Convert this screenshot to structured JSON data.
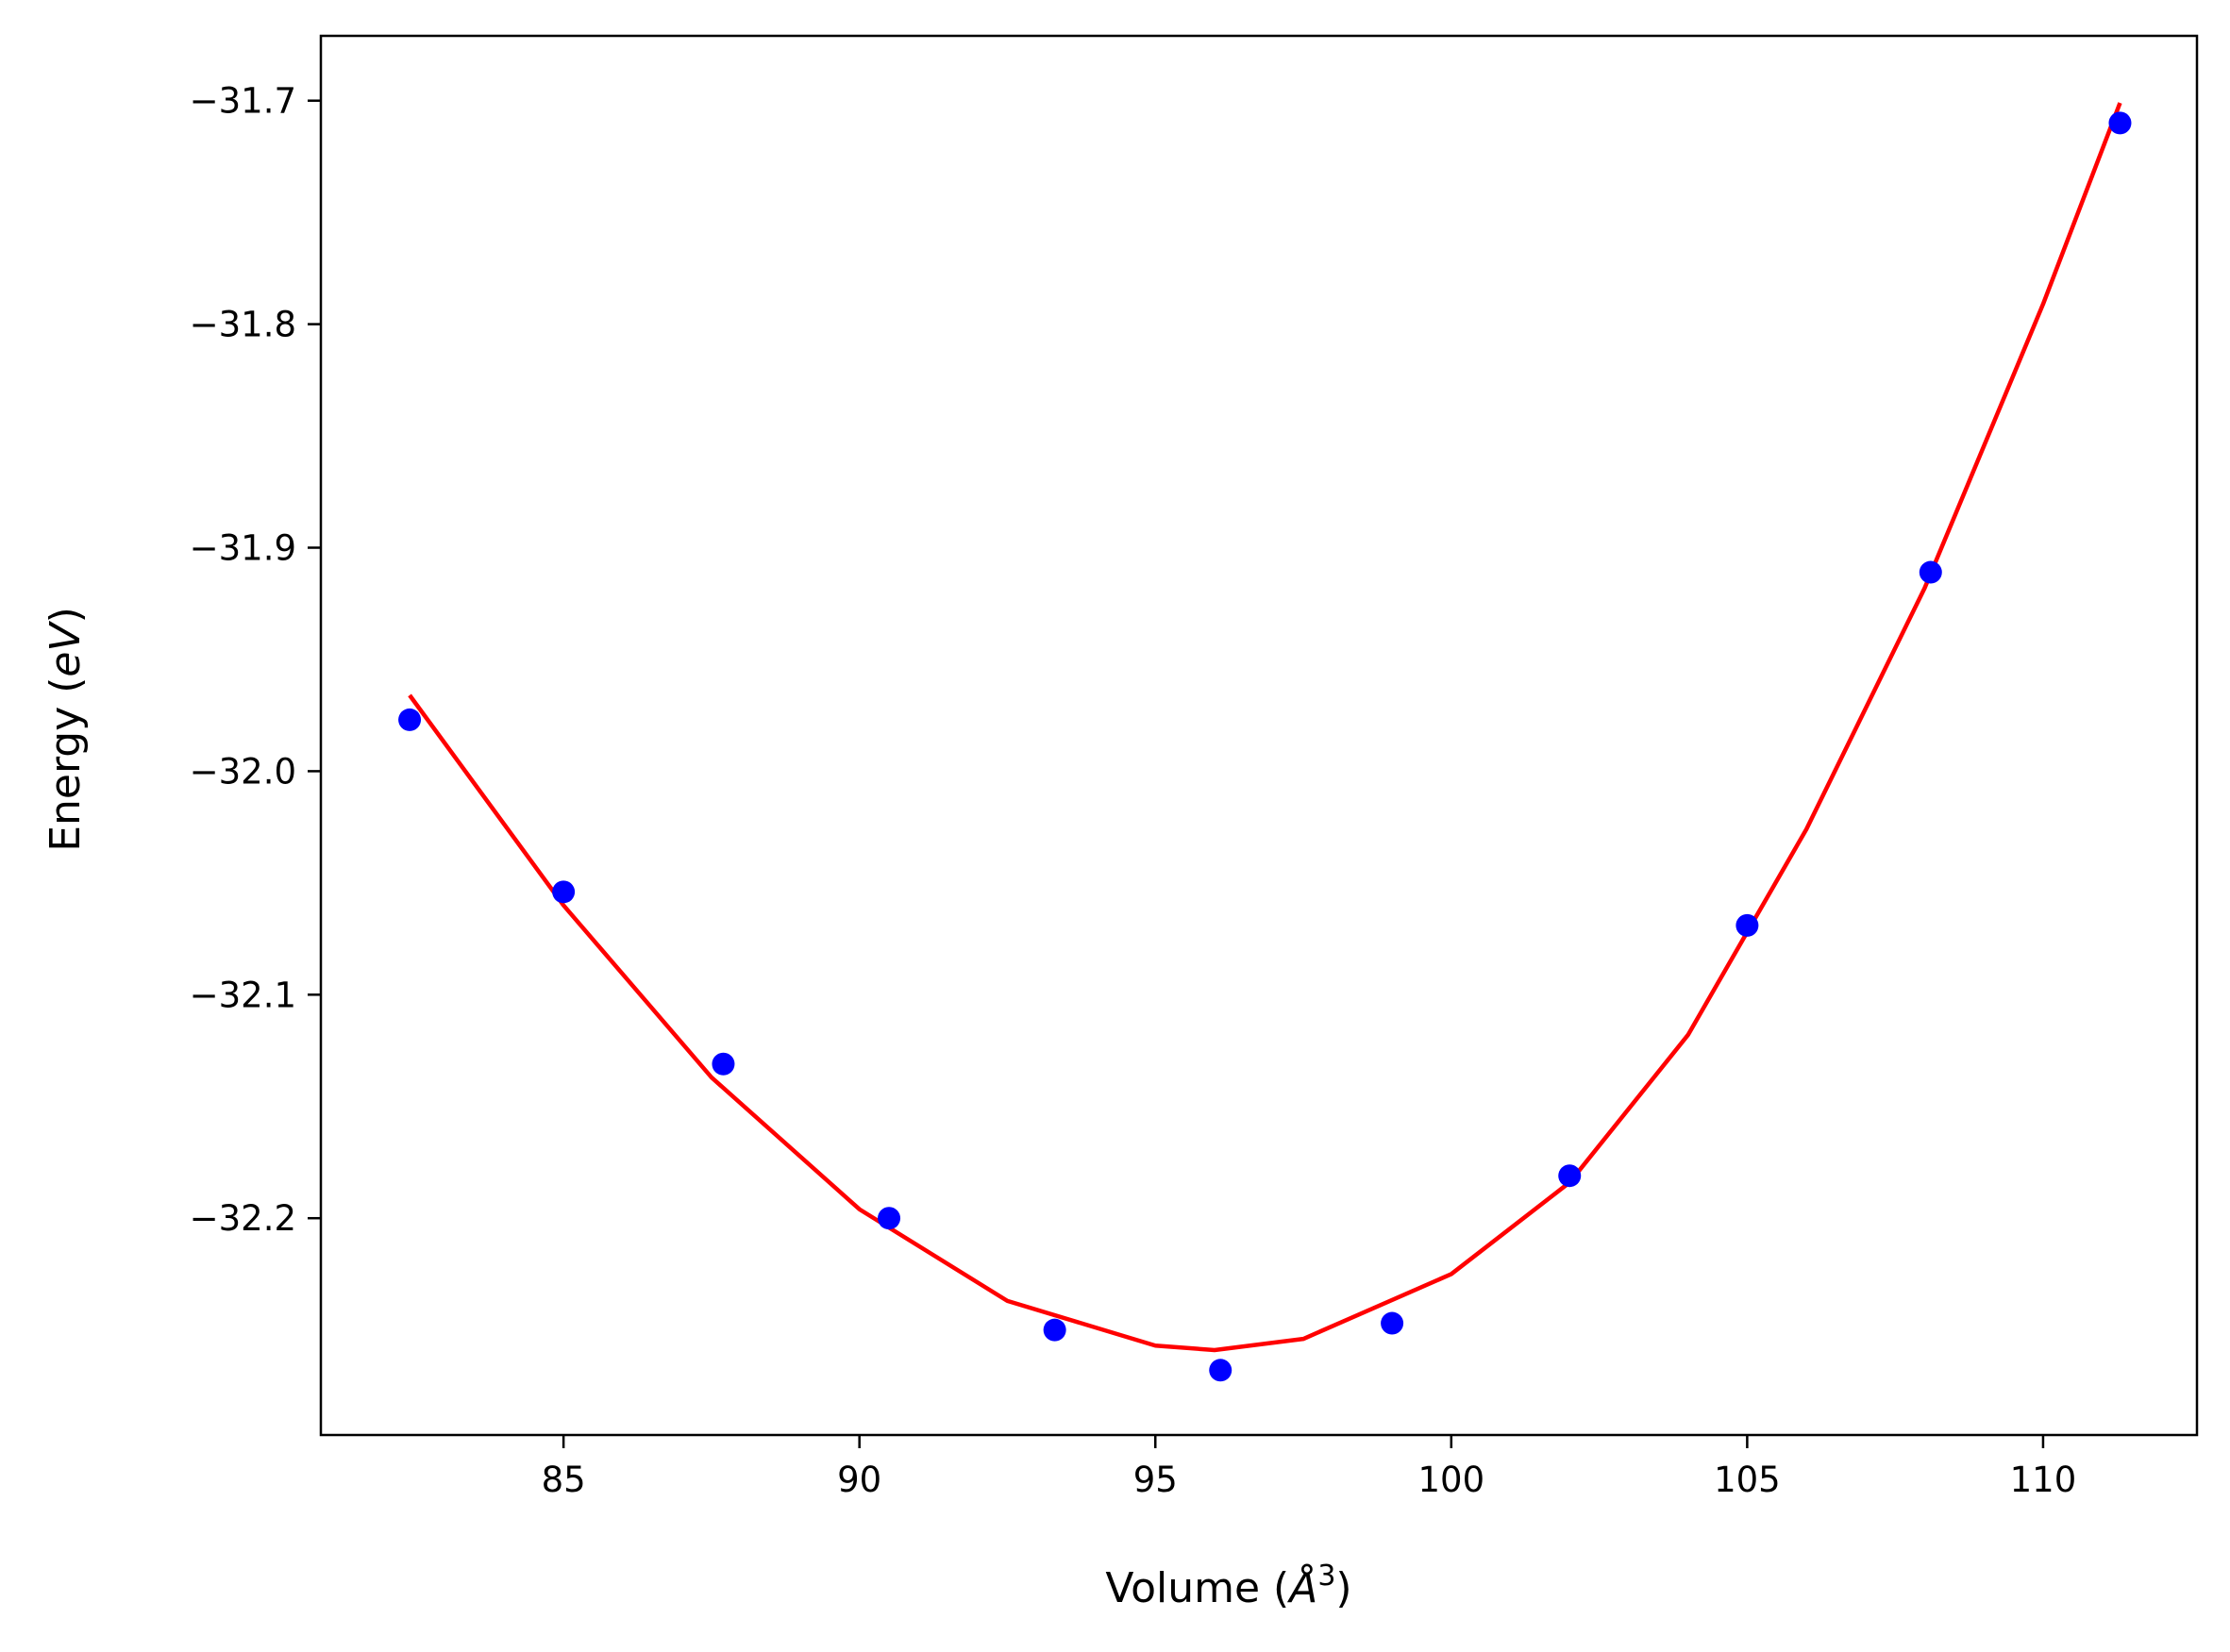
{
  "chart_data": {
    "type": "scatter",
    "title": "",
    "xlabel": "Volume (Å³)",
    "ylabel": "Energy (eV)",
    "xlabel_parts": {
      "prefix": "Volume (",
      "symbol": "Å",
      "sup": "3",
      "suffix": ")"
    },
    "ylabel_parts": {
      "prefix": "Energy (",
      "symbol": "eV",
      "suffix": ")"
    },
    "xlim": [
      80.9,
      112.6
    ],
    "ylim": [
      -32.297,
      -31.671
    ],
    "xticks": [
      85,
      90,
      95,
      100,
      105,
      110
    ],
    "xtick_labels": [
      "85",
      "90",
      "95",
      "100",
      "105",
      "110"
    ],
    "yticks": [
      -31.7,
      -31.8,
      -31.9,
      -32.0,
      -32.1,
      -32.2
    ],
    "ytick_labels": [
      "−31.7",
      "−31.8",
      "−31.9",
      "−32.0",
      "−32.1",
      "−32.2"
    ],
    "grid": false,
    "legend": "none",
    "series": [
      {
        "kind": "scatter",
        "color": "#0000ff",
        "points": [
          {
            "x": 82.4,
            "y": -31.977
          },
          {
            "x": 85.0,
            "y": -32.054
          },
          {
            "x": 87.7,
            "y": -32.131
          },
          {
            "x": 90.5,
            "y": -32.2
          },
          {
            "x": 93.3,
            "y": -32.25
          },
          {
            "x": 96.1,
            "y": -32.268
          },
          {
            "x": 99.0,
            "y": -32.247
          },
          {
            "x": 102.0,
            "y": -32.181
          },
          {
            "x": 105.0,
            "y": -32.069
          },
          {
            "x": 108.1,
            "y": -31.911
          },
          {
            "x": 111.3,
            "y": -31.71
          }
        ]
      },
      {
        "kind": "line",
        "color": "#ff0000",
        "points": [
          {
            "x": 82.4,
            "y": -31.966
          },
          {
            "x": 85.0,
            "y": -32.06
          },
          {
            "x": 87.5,
            "y": -32.137
          },
          {
            "x": 90.0,
            "y": -32.196
          },
          {
            "x": 92.5,
            "y": -32.237
          },
          {
            "x": 95.0,
            "y": -32.257
          },
          {
            "x": 96.0,
            "y": -32.259
          },
          {
            "x": 97.5,
            "y": -32.254
          },
          {
            "x": 100.0,
            "y": -32.225
          },
          {
            "x": 102.0,
            "y": -32.184
          },
          {
            "x": 104.0,
            "y": -32.118
          },
          {
            "x": 106.0,
            "y": -32.026
          },
          {
            "x": 108.0,
            "y": -31.918
          },
          {
            "x": 110.0,
            "y": -31.791
          },
          {
            "x": 111.3,
            "y": -31.701
          }
        ]
      }
    ]
  }
}
